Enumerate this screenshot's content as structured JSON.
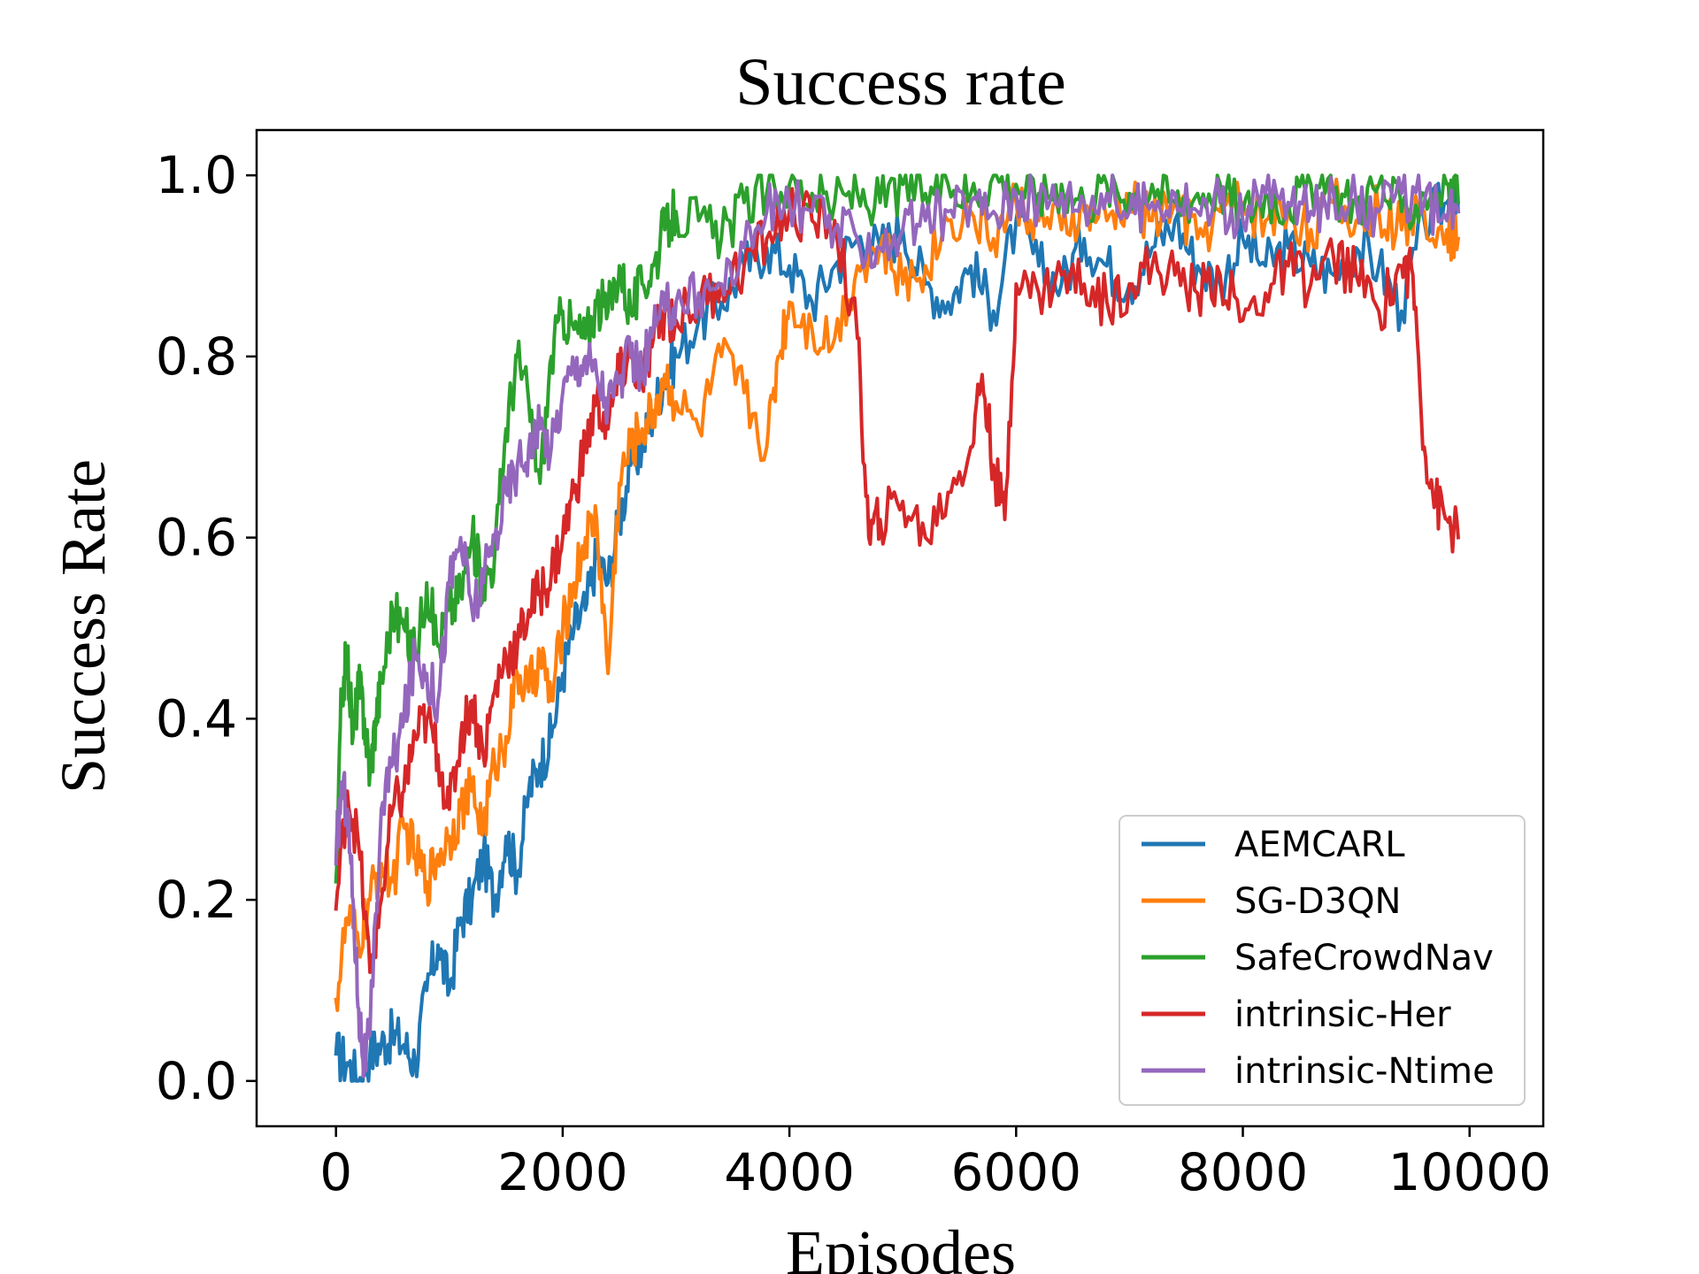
{
  "chart_data": {
    "type": "line",
    "title": "Success rate",
    "xlabel": "Episodes",
    "ylabel": "Success Rate",
    "xlim": [
      -700,
      10650
    ],
    "ylim": [
      -0.05,
      1.05
    ],
    "xticks": [
      0,
      2000,
      4000,
      6000,
      8000,
      10000
    ],
    "xtick_labels": [
      "0",
      "2000",
      "4000",
      "6000",
      "8000",
      "10000"
    ],
    "yticks": [
      0.0,
      0.2,
      0.4,
      0.6,
      0.8,
      1.0
    ],
    "ytick_labels": [
      "0.0",
      "0.2",
      "0.4",
      "0.6",
      "0.8",
      "1.0"
    ],
    "grid": false,
    "legend_position": "lower-right",
    "series": [
      {
        "name": "AEMCARL",
        "color": "#1f77b4",
        "x": [
          0,
          100,
          200,
          300,
          400,
          500,
          600,
          700,
          800,
          900,
          1000,
          1100,
          1200,
          1300,
          1400,
          1500,
          1600,
          1700,
          1800,
          1900,
          2000,
          2100,
          2200,
          2300,
          2400,
          2500,
          2600,
          2700,
          2800,
          2900,
          3000,
          3200,
          3400,
          3600,
          3800,
          4000,
          4200,
          4400,
          4600,
          4800,
          5000,
          5200,
          5400,
          5600,
          5800,
          6000,
          6200,
          6400,
          6600,
          6800,
          7000,
          7200,
          7400,
          7600,
          7800,
          8000,
          8200,
          8400,
          8600,
          8800,
          9000,
          9200,
          9400,
          9600,
          9800,
          9900
        ],
        "values": [
          0.03,
          0.02,
          0.0,
          0.03,
          0.04,
          0.05,
          0.04,
          0.02,
          0.1,
          0.15,
          0.1,
          0.18,
          0.2,
          0.25,
          0.2,
          0.27,
          0.23,
          0.32,
          0.35,
          0.38,
          0.45,
          0.5,
          0.52,
          0.58,
          0.55,
          0.62,
          0.68,
          0.7,
          0.74,
          0.78,
          0.8,
          0.84,
          0.86,
          0.9,
          0.92,
          0.9,
          0.86,
          0.9,
          0.93,
          0.92,
          0.94,
          0.88,
          0.86,
          0.9,
          0.85,
          0.95,
          0.9,
          0.88,
          0.93,
          0.9,
          0.88,
          0.92,
          0.95,
          0.9,
          0.88,
          0.93,
          0.9,
          0.92,
          0.9,
          0.89,
          0.92,
          0.9,
          0.85,
          0.95,
          0.97,
          0.96
        ]
      },
      {
        "name": "SG-D3QN",
        "color": "#ff7f0e",
        "x": [
          0,
          100,
          200,
          300,
          400,
          500,
          600,
          700,
          800,
          900,
          1000,
          1100,
          1200,
          1300,
          1400,
          1500,
          1600,
          1700,
          1800,
          1900,
          2000,
          2100,
          2200,
          2300,
          2400,
          2500,
          2600,
          2700,
          2800,
          2900,
          3000,
          3200,
          3400,
          3600,
          3800,
          3900,
          4000,
          4200,
          4400,
          4600,
          4800,
          5000,
          5200,
          5400,
          5600,
          5800,
          6000,
          6200,
          6400,
          6600,
          6800,
          7000,
          7200,
          7400,
          7600,
          7800,
          8000,
          8200,
          8400,
          8600,
          8800,
          9000,
          9200,
          9400,
          9600,
          9800,
          9900
        ],
        "values": [
          0.09,
          0.18,
          0.15,
          0.2,
          0.24,
          0.22,
          0.28,
          0.25,
          0.22,
          0.25,
          0.27,
          0.3,
          0.32,
          0.28,
          0.35,
          0.38,
          0.45,
          0.43,
          0.47,
          0.42,
          0.5,
          0.55,
          0.6,
          0.62,
          0.45,
          0.66,
          0.7,
          0.72,
          0.74,
          0.78,
          0.75,
          0.72,
          0.8,
          0.76,
          0.7,
          0.8,
          0.86,
          0.83,
          0.82,
          0.9,
          0.92,
          0.88,
          0.9,
          0.95,
          0.96,
          0.93,
          0.97,
          0.95,
          0.94,
          0.96,
          0.95,
          0.97,
          0.95,
          0.97,
          0.93,
          0.96,
          0.97,
          0.95,
          0.96,
          0.94,
          0.97,
          0.95,
          0.96,
          0.94,
          0.96,
          0.94,
          0.93
        ]
      },
      {
        "name": "SafeCrowdNav",
        "color": "#2ca02c",
        "x": [
          0,
          50,
          100,
          150,
          200,
          250,
          300,
          350,
          400,
          500,
          600,
          700,
          800,
          900,
          1000,
          1100,
          1200,
          1300,
          1400,
          1500,
          1600,
          1700,
          1800,
          1900,
          2000,
          2100,
          2200,
          2300,
          2400,
          2500,
          2600,
          2700,
          2800,
          2900,
          3000,
          3200,
          3400,
          3600,
          3800,
          4000,
          4200,
          4400,
          4600,
          4800,
          5000,
          5200,
          5400,
          5600,
          5800,
          6000,
          6200,
          6400,
          6600,
          6800,
          7000,
          7200,
          7400,
          7600,
          7800,
          8000,
          8200,
          8400,
          8600,
          8800,
          9000,
          9200,
          9400,
          9600,
          9800,
          9900
        ],
        "values": [
          0.22,
          0.43,
          0.47,
          0.38,
          0.44,
          0.4,
          0.34,
          0.4,
          0.44,
          0.52,
          0.5,
          0.47,
          0.55,
          0.48,
          0.52,
          0.54,
          0.6,
          0.55,
          0.58,
          0.72,
          0.8,
          0.75,
          0.66,
          0.8,
          0.85,
          0.83,
          0.82,
          0.86,
          0.85,
          0.9,
          0.85,
          0.88,
          0.9,
          0.94,
          0.96,
          0.95,
          0.93,
          0.97,
          0.98,
          0.99,
          0.98,
          0.97,
          0.98,
          0.97,
          0.99,
          0.98,
          0.99,
          0.98,
          1.0,
          0.99,
          0.98,
          0.99,
          0.97,
          0.99,
          0.98,
          0.99,
          0.97,
          0.98,
          0.99,
          0.96,
          0.98,
          0.97,
          0.99,
          0.98,
          0.97,
          0.99,
          0.96,
          0.98,
          0.99,
          0.97
        ]
      },
      {
        "name": "intrinsic-Her",
        "color": "#d62728",
        "x": [
          0,
          100,
          200,
          300,
          400,
          500,
          600,
          700,
          800,
          900,
          1000,
          1100,
          1200,
          1300,
          1400,
          1500,
          1600,
          1700,
          1800,
          1900,
          2000,
          2100,
          2200,
          2300,
          2400,
          2500,
          2600,
          2700,
          2800,
          2900,
          3000,
          3200,
          3400,
          3600,
          3800,
          4000,
          4200,
          4400,
          4600,
          4700,
          4800,
          5000,
          5200,
          5400,
          5600,
          5700,
          5800,
          5900,
          6000,
          6200,
          6400,
          6600,
          6800,
          7000,
          7200,
          7400,
          7600,
          7800,
          8000,
          8200,
          8400,
          8600,
          8800,
          9000,
          9200,
          9400,
          9500,
          9600,
          9700,
          9800,
          9900
        ],
        "values": [
          0.19,
          0.32,
          0.26,
          0.12,
          0.2,
          0.3,
          0.32,
          0.38,
          0.4,
          0.36,
          0.3,
          0.38,
          0.42,
          0.36,
          0.43,
          0.47,
          0.48,
          0.52,
          0.54,
          0.56,
          0.6,
          0.65,
          0.7,
          0.75,
          0.72,
          0.78,
          0.8,
          0.77,
          0.82,
          0.85,
          0.84,
          0.86,
          0.88,
          0.9,
          0.93,
          0.96,
          0.95,
          0.95,
          0.82,
          0.6,
          0.62,
          0.64,
          0.6,
          0.65,
          0.7,
          0.78,
          0.68,
          0.62,
          0.88,
          0.87,
          0.89,
          0.88,
          0.86,
          0.88,
          0.9,
          0.89,
          0.87,
          0.89,
          0.84,
          0.87,
          0.9,
          0.88,
          0.91,
          0.89,
          0.85,
          0.9,
          0.89,
          0.7,
          0.64,
          0.62,
          0.6
        ]
      },
      {
        "name": "intrinsic-Ntime",
        "color": "#9467bd",
        "x": [
          0,
          50,
          100,
          150,
          200,
          250,
          300,
          400,
          500,
          600,
          700,
          800,
          900,
          1000,
          1100,
          1200,
          1300,
          1400,
          1500,
          1600,
          1700,
          1800,
          1900,
          2000,
          2100,
          2200,
          2300,
          2400,
          2500,
          2600,
          2700,
          2800,
          2900,
          3000,
          3200,
          3400,
          3600,
          3800,
          4000,
          4200,
          4400,
          4600,
          4800,
          5000,
          5200,
          5400,
          5600,
          5800,
          6000,
          6200,
          6400,
          6600,
          6800,
          7000,
          7200,
          7400,
          7600,
          7800,
          8000,
          8200,
          8400,
          8600,
          8800,
          9000,
          9200,
          9400,
          9600,
          9800,
          9900
        ],
        "values": [
          0.24,
          0.33,
          0.3,
          0.2,
          0.08,
          0.02,
          0.05,
          0.3,
          0.35,
          0.4,
          0.47,
          0.45,
          0.42,
          0.55,
          0.6,
          0.52,
          0.55,
          0.6,
          0.65,
          0.68,
          0.7,
          0.72,
          0.7,
          0.76,
          0.79,
          0.8,
          0.78,
          0.75,
          0.77,
          0.8,
          0.78,
          0.83,
          0.85,
          0.86,
          0.87,
          0.88,
          0.92,
          0.96,
          0.97,
          0.96,
          0.94,
          0.93,
          0.92,
          0.94,
          0.95,
          0.96,
          0.97,
          0.96,
          0.98,
          0.97,
          0.98,
          0.97,
          0.98,
          0.96,
          0.97,
          0.98,
          0.96,
          0.97,
          0.95,
          0.98,
          0.97,
          0.96,
          0.98,
          0.97,
          0.96,
          0.98,
          0.97,
          0.95,
          0.96
        ]
      }
    ]
  }
}
